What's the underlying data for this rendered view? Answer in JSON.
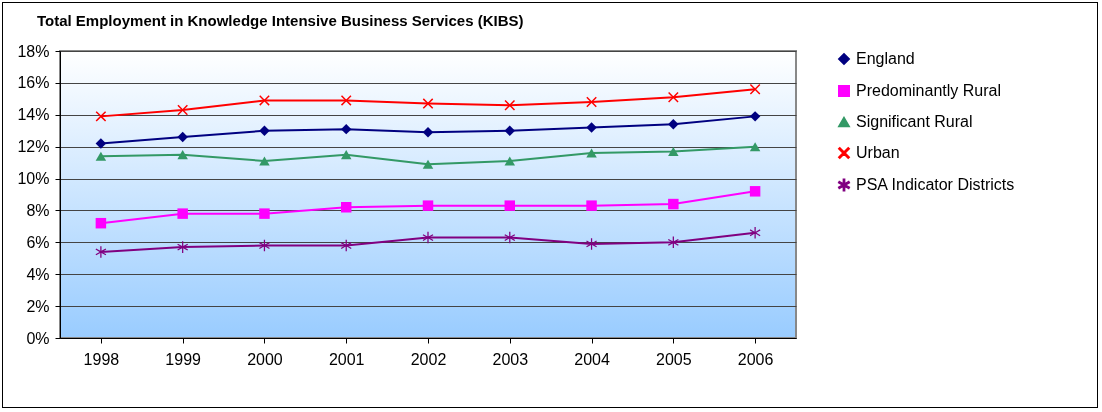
{
  "chart_data": {
    "type": "line",
    "title": "Total Employment in Knowledge Intensive Business Services (KIBS)",
    "categories": [
      "1998",
      "1999",
      "2000",
      "2001",
      "2002",
      "2003",
      "2004",
      "2005",
      "2006"
    ],
    "series": [
      {
        "name": "England",
        "color": "#000080",
        "marker": "diamond",
        "values": [
          12.2,
          12.6,
          13.0,
          13.1,
          12.9,
          13.0,
          13.2,
          13.4,
          13.9
        ]
      },
      {
        "name": "Predominantly Rural",
        "color": "#ff00ff",
        "marker": "square",
        "values": [
          7.2,
          7.8,
          7.8,
          8.2,
          8.3,
          8.3,
          8.3,
          8.4,
          9.2
        ]
      },
      {
        "name": "Significant Rural",
        "color": "#339966",
        "marker": "triangle",
        "values": [
          11.4,
          11.5,
          11.1,
          11.5,
          10.9,
          11.1,
          11.6,
          11.7,
          12.0
        ]
      },
      {
        "name": "Urban",
        "color": "#ff0000",
        "marker": "cross",
        "values": [
          13.9,
          14.3,
          14.9,
          14.9,
          14.7,
          14.6,
          14.8,
          15.1,
          15.6
        ]
      },
      {
        "name": "PSA Indicator Districts",
        "color": "#800080",
        "marker": "star",
        "values": [
          5.4,
          5.7,
          5.8,
          5.8,
          6.3,
          6.3,
          5.9,
          6.0,
          6.6
        ]
      }
    ],
    "ylim": [
      0,
      18
    ],
    "yticks": [
      {
        "value": 0,
        "label": "0%"
      },
      {
        "value": 2,
        "label": "2%"
      },
      {
        "value": 4,
        "label": "4%"
      },
      {
        "value": 6,
        "label": "6%"
      },
      {
        "value": 8,
        "label": "8%"
      },
      {
        "value": 10,
        "label": "10%"
      },
      {
        "value": 12,
        "label": "12%"
      },
      {
        "value": 14,
        "label": "14%"
      },
      {
        "value": 16,
        "label": "16%"
      },
      {
        "value": 18,
        "label": "18%"
      }
    ],
    "grid": "y",
    "legend": "right",
    "line_style": "solid"
  }
}
